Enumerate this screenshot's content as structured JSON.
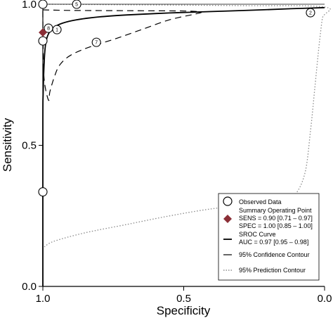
{
  "chart_data": {
    "type": "scatter",
    "title": "",
    "xlabel": "Specificity",
    "ylabel": "Sensitivity",
    "xaxis_reversed": true,
    "xlim": [
      1.0,
      0.0
    ],
    "ylim": [
      0.0,
      1.0
    ],
    "x_ticks": [
      {
        "value": 1.0,
        "label": "1.0"
      },
      {
        "value": 0.5,
        "label": "0.5"
      },
      {
        "value": 0.0,
        "label": "0.0"
      }
    ],
    "y_ticks": [
      {
        "value": 0.0,
        "label": "0.0"
      },
      {
        "value": 0.5,
        "label": "0.5"
      },
      {
        "value": 1.0,
        "label": "1.0"
      }
    ],
    "grid": false,
    "legend_position": "bottom-right",
    "observed_data": [
      {
        "label": "5",
        "specificity": 0.88,
        "sensitivity": 1.0
      },
      {
        "label": "",
        "specificity": 1.0,
        "sensitivity": 1.0
      },
      {
        "label": "2",
        "specificity": 0.05,
        "sensitivity": 0.97
      },
      {
        "label": "8",
        "specificity": 0.98,
        "sensitivity": 0.915
      },
      {
        "label": "1",
        "specificity": 0.95,
        "sensitivity": 0.91
      },
      {
        "label": "",
        "specificity": 1.0,
        "sensitivity": 0.87
      },
      {
        "label": "7",
        "specificity": 0.81,
        "sensitivity": 0.865
      },
      {
        "label": "",
        "specificity": 1.0,
        "sensitivity": 0.335
      }
    ],
    "summary_point": {
      "specificity": 1.0,
      "sensitivity": 0.9,
      "color": "#8b2e36"
    },
    "sroc_curve": [
      [
        1.0,
        0.0
      ],
      [
        1.0,
        0.58
      ],
      [
        0.999,
        0.68
      ],
      [
        0.995,
        0.8
      ],
      [
        0.99,
        0.86
      ],
      [
        0.98,
        0.895
      ],
      [
        0.96,
        0.918
      ],
      [
        0.93,
        0.933
      ],
      [
        0.88,
        0.945
      ],
      [
        0.8,
        0.955
      ],
      [
        0.7,
        0.962
      ],
      [
        0.55,
        0.969
      ],
      [
        0.4,
        0.974
      ],
      [
        0.25,
        0.979
      ],
      [
        0.12,
        0.984
      ],
      [
        0.0,
        0.988
      ]
    ],
    "confidence_contour": [
      [
        1.0,
        0.98
      ],
      [
        0.9,
        0.978
      ],
      [
        0.7,
        0.977
      ],
      [
        0.5,
        0.976
      ],
      [
        0.44,
        0.972
      ],
      [
        0.46,
        0.965
      ],
      [
        0.55,
        0.945
      ],
      [
        0.65,
        0.91
      ],
      [
        0.75,
        0.875
      ],
      [
        0.83,
        0.85
      ],
      [
        0.9,
        0.82
      ],
      [
        0.94,
        0.785
      ],
      [
        0.96,
        0.74
      ],
      [
        0.975,
        0.69
      ],
      [
        0.98,
        0.66
      ],
      [
        0.995,
        0.73
      ],
      [
        0.999,
        0.85
      ],
      [
        1.0,
        0.95
      ],
      [
        1.0,
        0.98
      ]
    ],
    "prediction_contour": [
      [
        0.995,
        0.14
      ],
      [
        0.96,
        0.16
      ],
      [
        0.85,
        0.19
      ],
      [
        0.7,
        0.22
      ],
      [
        0.55,
        0.25
      ],
      [
        0.4,
        0.275
      ],
      [
        0.25,
        0.29
      ],
      [
        0.17,
        0.3
      ],
      [
        0.11,
        0.32
      ],
      [
        0.07,
        0.4
      ],
      [
        0.05,
        0.55
      ],
      [
        0.035,
        0.7
      ],
      [
        0.02,
        0.85
      ],
      [
        0.008,
        0.95
      ],
      [
        0.0,
        0.99
      ],
      [
        0.3,
        0.995
      ],
      [
        0.7,
        0.998
      ],
      [
        1.0,
        1.0
      ]
    ],
    "legend": {
      "observed": "Observed Data",
      "summary_title": "Summary Operating Point",
      "summary_sens": "SENS = 0.90 [0.71 – 0.97]",
      "summary_spec": "SPEC = 1.00 [0.85 – 1.00]",
      "sroc_title": "SROC Curve",
      "sroc_auc": "AUC = 0.97 [0.95 – 0.98]",
      "confidence": "95% Confidence Contour",
      "prediction": "95% Prediction Contour"
    }
  }
}
